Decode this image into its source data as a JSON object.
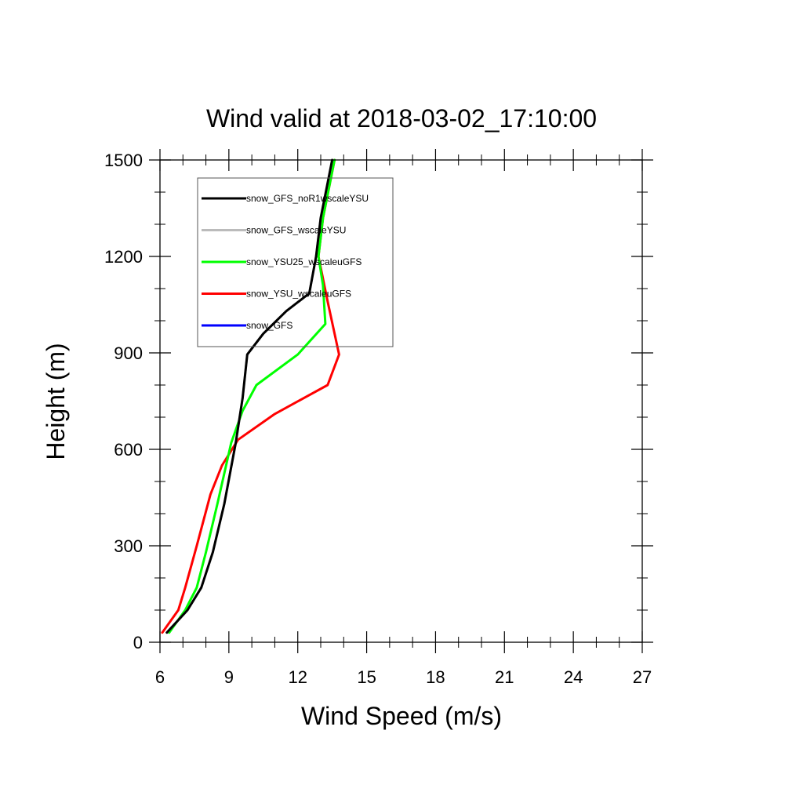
{
  "chart_data": {
    "type": "line",
    "title": "Wind valid at 2018-03-02_17:10:00",
    "xlabel": "Wind Speed (m/s)",
    "ylabel": "Height (m)",
    "xlim": [
      6,
      27
    ],
    "ylim": [
      0,
      1500
    ],
    "xticks": [
      6,
      9,
      12,
      15,
      18,
      21,
      24,
      27
    ],
    "yticks": [
      0,
      300,
      600,
      900,
      1200,
      1500
    ],
    "x_minor_step": 1,
    "y_minor_step": 100,
    "grid": false,
    "legend_placement": "top-left",
    "series": [
      {
        "name": "snow_GFS_noR1wscaleYSU",
        "color": "#000000",
        "points": [
          [
            6.3,
            30
          ],
          [
            7.2,
            100
          ],
          [
            7.8,
            170
          ],
          [
            8.3,
            280
          ],
          [
            8.8,
            430
          ],
          [
            9.3,
            620
          ],
          [
            9.6,
            760
          ],
          [
            9.8,
            895
          ],
          [
            10.5,
            960
          ],
          [
            11.5,
            1030
          ],
          [
            12.5,
            1085
          ],
          [
            12.8,
            1200
          ],
          [
            13.0,
            1320
          ],
          [
            13.5,
            1500
          ]
        ]
      },
      {
        "name": "snow_GFS_wscaleYSU",
        "color": "#bbbbbb",
        "points": [
          [
            6.3,
            30
          ],
          [
            7.2,
            100
          ],
          [
            7.8,
            170
          ],
          [
            8.3,
            280
          ],
          [
            8.8,
            430
          ],
          [
            9.3,
            620
          ],
          [
            9.6,
            760
          ],
          [
            9.8,
            895
          ],
          [
            10.5,
            960
          ],
          [
            11.5,
            1030
          ],
          [
            12.5,
            1085
          ],
          [
            12.8,
            1200
          ],
          [
            13.0,
            1320
          ],
          [
            13.5,
            1500
          ]
        ]
      },
      {
        "name": "snow_YSU25_wscaleuGFS",
        "color": "#00ff00",
        "points": [
          [
            6.4,
            30
          ],
          [
            7.1,
            100
          ],
          [
            7.6,
            170
          ],
          [
            8.0,
            280
          ],
          [
            8.5,
            430
          ],
          [
            9.1,
            620
          ],
          [
            9.6,
            720
          ],
          [
            10.2,
            800
          ],
          [
            12.0,
            895
          ],
          [
            13.2,
            990
          ],
          [
            13.1,
            1110
          ],
          [
            12.9,
            1200
          ],
          [
            13.1,
            1320
          ],
          [
            13.6,
            1500
          ]
        ]
      },
      {
        "name": "snow_YSU_wscaleuGFS",
        "color": "#ff0000",
        "points": [
          [
            6.1,
            30
          ],
          [
            6.8,
            100
          ],
          [
            7.1,
            170
          ],
          [
            7.6,
            300
          ],
          [
            8.2,
            460
          ],
          [
            8.7,
            550
          ],
          [
            9.4,
            630
          ],
          [
            11.0,
            710
          ],
          [
            13.3,
            800
          ],
          [
            13.8,
            895
          ],
          [
            13.3,
            1060
          ],
          [
            12.9,
            1200
          ],
          [
            13.1,
            1320
          ],
          [
            13.6,
            1500
          ]
        ]
      },
      {
        "name": "snow_GFS",
        "color": "#0000ff",
        "points": []
      }
    ]
  }
}
